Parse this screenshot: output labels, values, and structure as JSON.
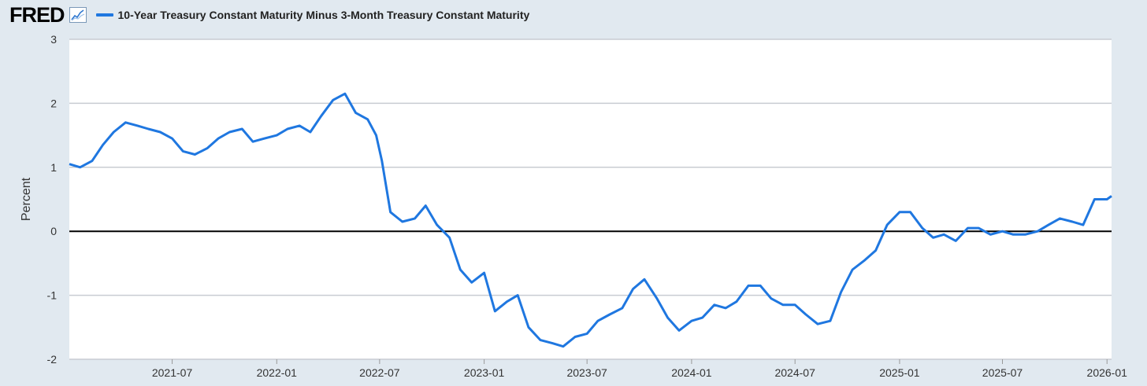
{
  "header": {
    "logo_text": "FRED",
    "logo_icon": "line-chart-icon",
    "series_label": "10-Year Treasury Constant Maturity Minus 3-Month Treasury Constant Maturity"
  },
  "colors": {
    "series": "#1f77e0",
    "zero_line": "#000000",
    "grid": "#c8ccd2",
    "plot_bg": "#ffffff",
    "page_bg": "#e1e9f0"
  },
  "chart_data": {
    "type": "line",
    "title": "",
    "xlabel": "",
    "ylabel": "Percent",
    "ylim": [
      -2,
      3
    ],
    "yticks": [
      -2,
      -1,
      0,
      1,
      2,
      3
    ],
    "ytick_labels": [
      "-2",
      "-1",
      "0",
      "1",
      "2",
      "3"
    ],
    "xlim": [
      "2021-01-01",
      "2026-01-09"
    ],
    "xticks": [
      "2021-07",
      "2022-01",
      "2022-07",
      "2023-01",
      "2023-07",
      "2024-01",
      "2024-07",
      "2025-01",
      "2025-07",
      "2026-01"
    ],
    "grid": true,
    "reference_line": 0,
    "series": [
      {
        "name": "10-Year Treasury Constant Maturity Minus 3-Month Treasury Constant Maturity",
        "x": [
          "2021-01-01",
          "2021-01-20",
          "2021-02-10",
          "2021-03-01",
          "2021-03-20",
          "2021-04-10",
          "2021-05-01",
          "2021-05-20",
          "2021-06-10",
          "2021-07-01",
          "2021-07-20",
          "2021-08-10",
          "2021-09-01",
          "2021-09-20",
          "2021-10-10",
          "2021-11-01",
          "2021-11-20",
          "2021-12-10",
          "2022-01-01",
          "2022-01-20",
          "2022-02-10",
          "2022-03-01",
          "2022-03-20",
          "2022-04-10",
          "2022-05-01",
          "2022-05-20",
          "2022-06-10",
          "2022-06-25",
          "2022-07-05",
          "2022-07-20",
          "2022-08-10",
          "2022-09-01",
          "2022-09-20",
          "2022-10-10",
          "2022-11-01",
          "2022-11-20",
          "2022-12-10",
          "2023-01-01",
          "2023-01-20",
          "2023-02-10",
          "2023-03-01",
          "2023-03-20",
          "2023-04-10",
          "2023-05-01",
          "2023-05-20",
          "2023-06-10",
          "2023-07-01",
          "2023-07-20",
          "2023-08-10",
          "2023-09-01",
          "2023-09-20",
          "2023-10-10",
          "2023-11-01",
          "2023-11-20",
          "2023-12-10",
          "2024-01-01",
          "2024-01-20",
          "2024-02-10",
          "2024-03-01",
          "2024-03-20",
          "2024-04-10",
          "2024-05-01",
          "2024-05-20",
          "2024-06-10",
          "2024-07-01",
          "2024-07-20",
          "2024-08-10",
          "2024-09-01",
          "2024-09-20",
          "2024-10-10",
          "2024-11-01",
          "2024-11-20",
          "2024-12-10",
          "2025-01-01",
          "2025-01-20",
          "2025-02-10",
          "2025-03-01",
          "2025-03-20",
          "2025-04-10",
          "2025-05-01",
          "2025-05-20",
          "2025-06-10",
          "2025-07-01",
          "2025-07-20",
          "2025-08-10",
          "2025-09-01",
          "2025-09-20",
          "2025-10-10",
          "2025-11-01",
          "2025-11-20",
          "2025-12-10",
          "2026-01-01",
          "2026-01-09"
        ],
        "values": [
          1.05,
          1.0,
          1.1,
          1.35,
          1.55,
          1.7,
          1.65,
          1.6,
          1.55,
          1.45,
          1.25,
          1.2,
          1.3,
          1.45,
          1.55,
          1.6,
          1.4,
          1.45,
          1.5,
          1.6,
          1.65,
          1.55,
          1.8,
          2.05,
          2.15,
          1.85,
          1.75,
          1.5,
          1.1,
          0.3,
          0.15,
          0.2,
          0.4,
          0.1,
          -0.1,
          -0.6,
          -0.8,
          -0.65,
          -1.25,
          -1.1,
          -1.0,
          -1.5,
          -1.7,
          -1.75,
          -1.8,
          -1.65,
          -1.6,
          -1.4,
          -1.3,
          -1.2,
          -0.9,
          -0.75,
          -1.05,
          -1.35,
          -1.55,
          -1.4,
          -1.35,
          -1.15,
          -1.2,
          -1.1,
          -0.85,
          -0.85,
          -1.05,
          -1.15,
          -1.15,
          -1.3,
          -1.45,
          -1.4,
          -0.95,
          -0.6,
          -0.45,
          -0.3,
          0.1,
          0.3,
          0.3,
          0.05,
          -0.1,
          -0.05,
          -0.15,
          0.05,
          0.05,
          -0.05,
          0.0,
          -0.05,
          -0.05,
          0.0,
          0.1,
          0.2,
          0.15,
          0.1,
          0.5,
          0.5,
          0.55
        ]
      }
    ]
  }
}
